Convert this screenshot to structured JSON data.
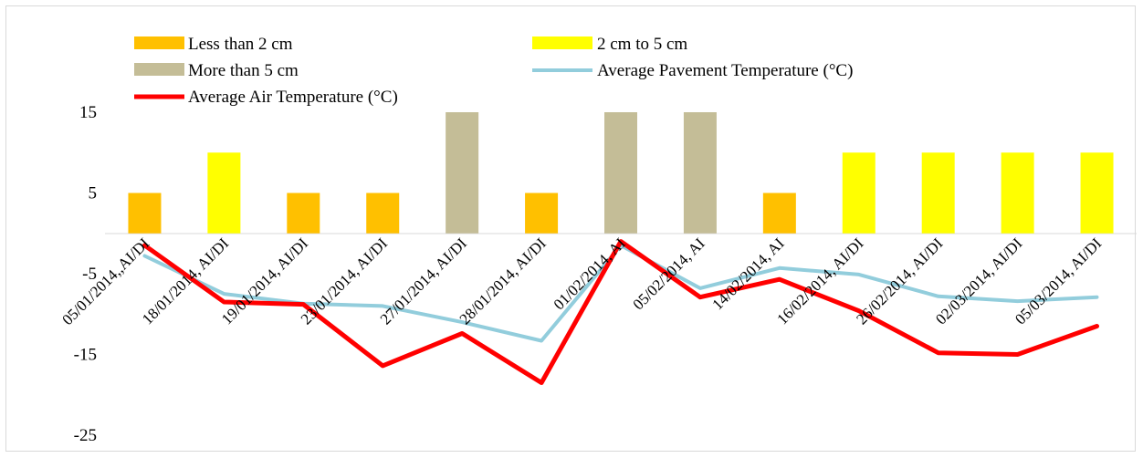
{
  "chart_data": {
    "type": "bar",
    "title": "",
    "xlabel": "",
    "ylabel": "",
    "ylim": [
      -25,
      15
    ],
    "yticks": [
      15,
      5,
      -5,
      -15,
      -25
    ],
    "grid": false,
    "legend_position": "top",
    "categories": [
      "05/01/2014,,AI/DI",
      "18/01/2014, AI/DI",
      "19/01/2014, AI/DI",
      "23/01/2014, AI/DI",
      "27/01/2014, AI/DI",
      "28/01/2014, AI/DI",
      "01/02/2014, AI",
      "05/02/2014, AI",
      "14/02/2014, AI",
      "16/02/2014, AI/DI",
      "26/02/2014, AI/DI",
      "02/03/2014, AI/DI",
      "05/03/2014, AI/DI"
    ],
    "bars": [
      {
        "value": 5,
        "class": "less"
      },
      {
        "value": 10,
        "class": "mid"
      },
      {
        "value": 5,
        "class": "less"
      },
      {
        "value": 5,
        "class": "less"
      },
      {
        "value": 15,
        "class": "more"
      },
      {
        "value": 5,
        "class": "less"
      },
      {
        "value": 15,
        "class": "more"
      },
      {
        "value": 15,
        "class": "more"
      },
      {
        "value": 5,
        "class": "less"
      },
      {
        "value": 10,
        "class": "mid"
      },
      {
        "value": 10,
        "class": "mid"
      },
      {
        "value": 10,
        "class": "mid"
      },
      {
        "value": 10,
        "class": "mid"
      }
    ],
    "bar_series": [
      {
        "key": "less",
        "name": "Less than 2 cm",
        "color": "#ffc000"
      },
      {
        "key": "mid",
        "name": "2 cm to 5 cm",
        "color": "#ffff00"
      },
      {
        "key": "more",
        "name": "More than 5 cm",
        "color": "#c4bd97"
      }
    ],
    "line_series": [
      {
        "name": "Average Pavement Temperature (°C)",
        "color": "#92cddc",
        "values": [
          -2.8,
          -7.5,
          -8.7,
          -9.0,
          -11.0,
          -13.3,
          -1.5,
          -6.8,
          -4.3,
          -5.1,
          -7.8,
          -8.4,
          -7.9
        ]
      },
      {
        "name": "Average Air Temperature (°C)",
        "color": "#ff0000",
        "values": [
          -1.5,
          -8.5,
          -8.8,
          -16.4,
          -12.4,
          -18.5,
          -1.0,
          -7.9,
          -5.7,
          -9.6,
          -14.8,
          -15.0,
          -11.5
        ]
      }
    ]
  }
}
